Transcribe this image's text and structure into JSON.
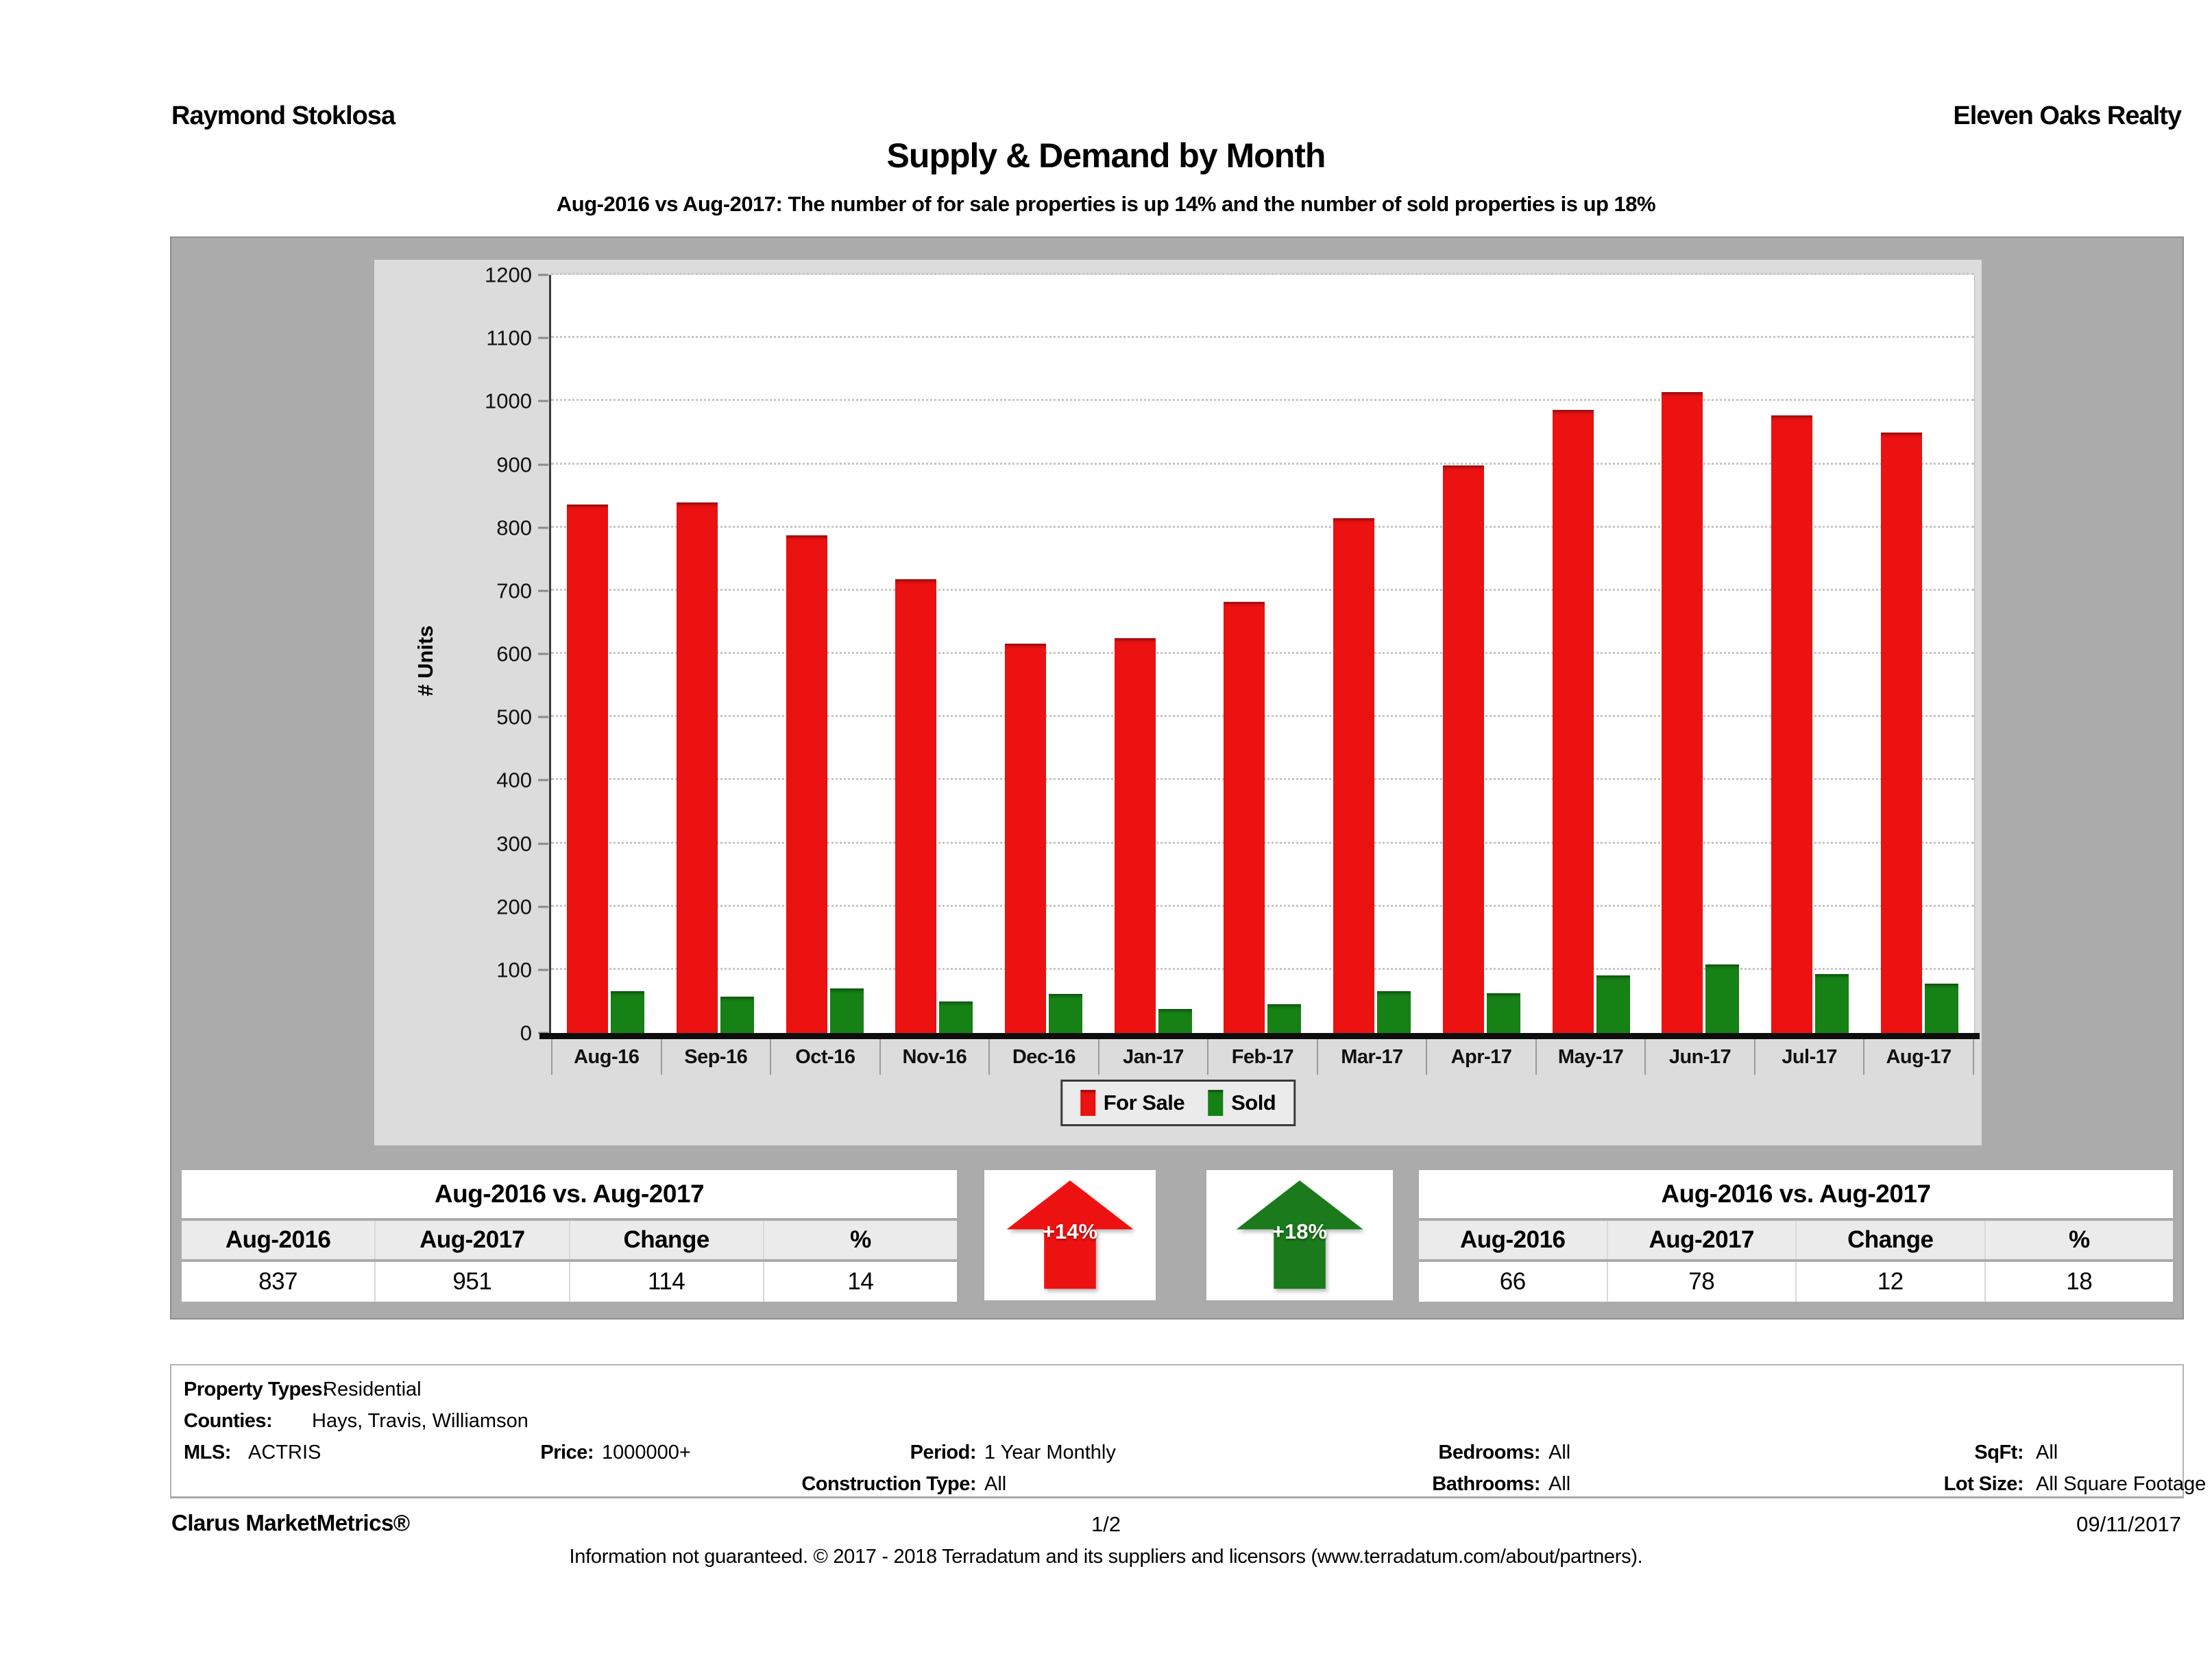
{
  "header": {
    "agent": "Raymond Stoklosa",
    "company": "Eleven Oaks Realty"
  },
  "title": "Supply & Demand by Month",
  "subtitle": "Aug-2016 vs Aug-2017: The number of for sale properties is up 14% and the number of sold properties is up 18%",
  "chart_data": {
    "type": "bar",
    "categories": [
      "Aug-16",
      "Sep-16",
      "Oct-16",
      "Nov-16",
      "Dec-16",
      "Jan-17",
      "Feb-17",
      "Mar-17",
      "Apr-17",
      "May-17",
      "Jun-17",
      "Jul-17",
      "Aug-17"
    ],
    "series": [
      {
        "name": "For Sale",
        "color": "#ed1212",
        "values": [
          837,
          840,
          788,
          718,
          616,
          625,
          682,
          815,
          898,
          986,
          1014,
          978,
          951
        ]
      },
      {
        "name": "Sold",
        "color": "#168216",
        "values": [
          66,
          57,
          70,
          50,
          62,
          38,
          46,
          66,
          63,
          91,
          109,
          93,
          78
        ]
      }
    ],
    "title": "Supply & Demand by Month",
    "xlabel": "",
    "ylabel": "# Units",
    "ylim": [
      0,
      1200
    ],
    "ytick_step": 100,
    "grid": true,
    "legend_position": "bottom"
  },
  "summary_tables": {
    "for_sale": {
      "title": "Aug-2016 vs. Aug-2017",
      "columns": [
        "Aug-2016",
        "Aug-2017",
        "Change",
        "%"
      ],
      "values": [
        "837",
        "951",
        "114",
        "14"
      ]
    },
    "sold": {
      "title": "Aug-2016 vs. Aug-2017",
      "columns": [
        "Aug-2016",
        "Aug-2017",
        "Change",
        "%"
      ],
      "values": [
        "66",
        "78",
        "12",
        "18"
      ]
    }
  },
  "arrows": {
    "for_sale": {
      "label": "+14%",
      "color": "#ed1212"
    },
    "sold": {
      "label": "+18%",
      "color": "#1b7a1b"
    }
  },
  "details": {
    "property_types": {
      "label": "Property Types:",
      "value": ": Residential"
    },
    "counties": {
      "label": "Counties:",
      "value": "Hays, Travis, Williamson"
    },
    "mls": {
      "label": "MLS:",
      "value": "ACTRIS"
    },
    "price": {
      "label": "Price:",
      "value": "1000000+"
    },
    "period": {
      "label": "Period:",
      "value": "1 Year Monthly"
    },
    "construction_type": {
      "label": "Construction Type:",
      "value": "All"
    },
    "bedrooms": {
      "label": "Bedrooms:",
      "value": "All"
    },
    "bathrooms": {
      "label": "Bathrooms:",
      "value": "All"
    },
    "sqft": {
      "label": "SqFt:",
      "value": "All"
    },
    "lot_size": {
      "label": "Lot Size:",
      "value": "All Square Footage"
    }
  },
  "footer": {
    "brand": "Clarus MarketMetrics®",
    "page": "1/2",
    "date": "09/11/2017",
    "disclaimer": "Information not guaranteed. © 2017 - 2018 Terradatum and its suppliers and licensors (www.terradatum.com/about/partners)."
  }
}
